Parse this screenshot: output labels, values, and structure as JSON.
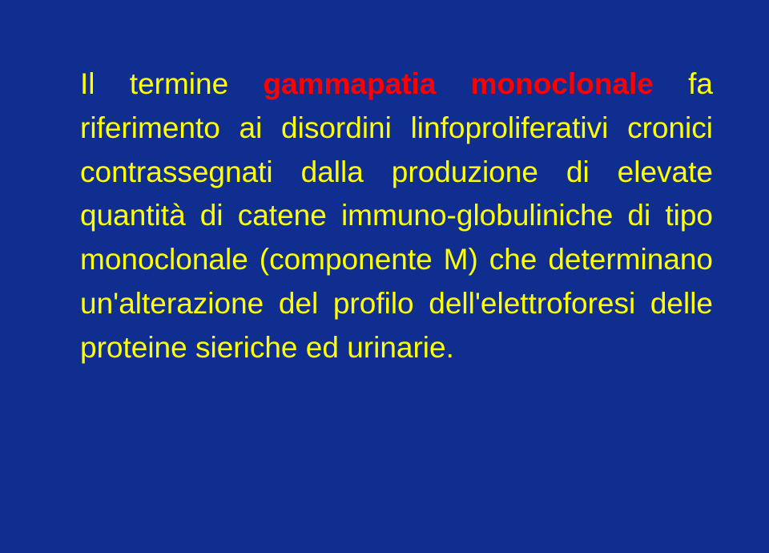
{
  "colors": {
    "background": "#0f2e8f",
    "text": "#ffff00",
    "highlight": "#ff0000"
  },
  "content": {
    "t1": "Il termine ",
    "t2": "gammapatia monoclonale",
    "t3": " fa riferimento ai disordini linfoproliferativi cronici contrassegnati dalla produzione di elevate quantità di catene immuno-globuliniche di tipo monoclonale (componente M) che determinano un'alterazione del profilo dell'elettroforesi delle proteine sieriche ed urinarie."
  }
}
